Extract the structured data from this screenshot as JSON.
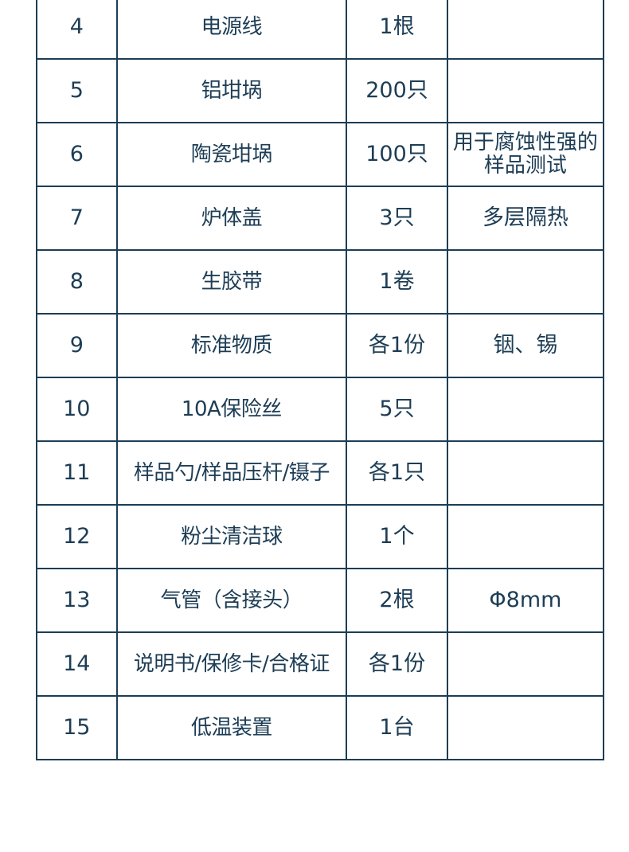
{
  "table": {
    "rows": [
      {
        "no": "4",
        "name": "电源线",
        "qty": "1根",
        "remark": ""
      },
      {
        "no": "5",
        "name": "铝坩埚",
        "qty": "200只",
        "remark": ""
      },
      {
        "no": "6",
        "name": "陶瓷坩埚",
        "qty": "100只",
        "remark": "用于腐蚀性强的样品测试"
      },
      {
        "no": "7",
        "name": "炉体盖",
        "qty": "3只",
        "remark": "多层隔热"
      },
      {
        "no": "8",
        "name": "生胶带",
        "qty": "1卷",
        "remark": ""
      },
      {
        "no": "9",
        "name": "标准物质",
        "qty": "各1份",
        "remark": "铟、锡"
      },
      {
        "no": "10",
        "name": "10A保险丝",
        "qty": "5只",
        "remark": ""
      },
      {
        "no": "11",
        "name": "样品勺/样品压杆/镊子",
        "qty": "各1只",
        "remark": ""
      },
      {
        "no": "12",
        "name": "粉尘清洁球",
        "qty": "1个",
        "remark": ""
      },
      {
        "no": "13",
        "name": "气管（含接头）",
        "qty": "2根",
        "remark": "Φ8mm"
      },
      {
        "no": "14",
        "name": "说明书/保修卡/合格证",
        "qty": "各1份",
        "remark": ""
      },
      {
        "no": "15",
        "name": "低温装置",
        "qty": "1台",
        "remark": ""
      }
    ]
  },
  "colors": {
    "text": "#1d3d55",
    "border": "#1d3d55",
    "background": "#ffffff"
  }
}
